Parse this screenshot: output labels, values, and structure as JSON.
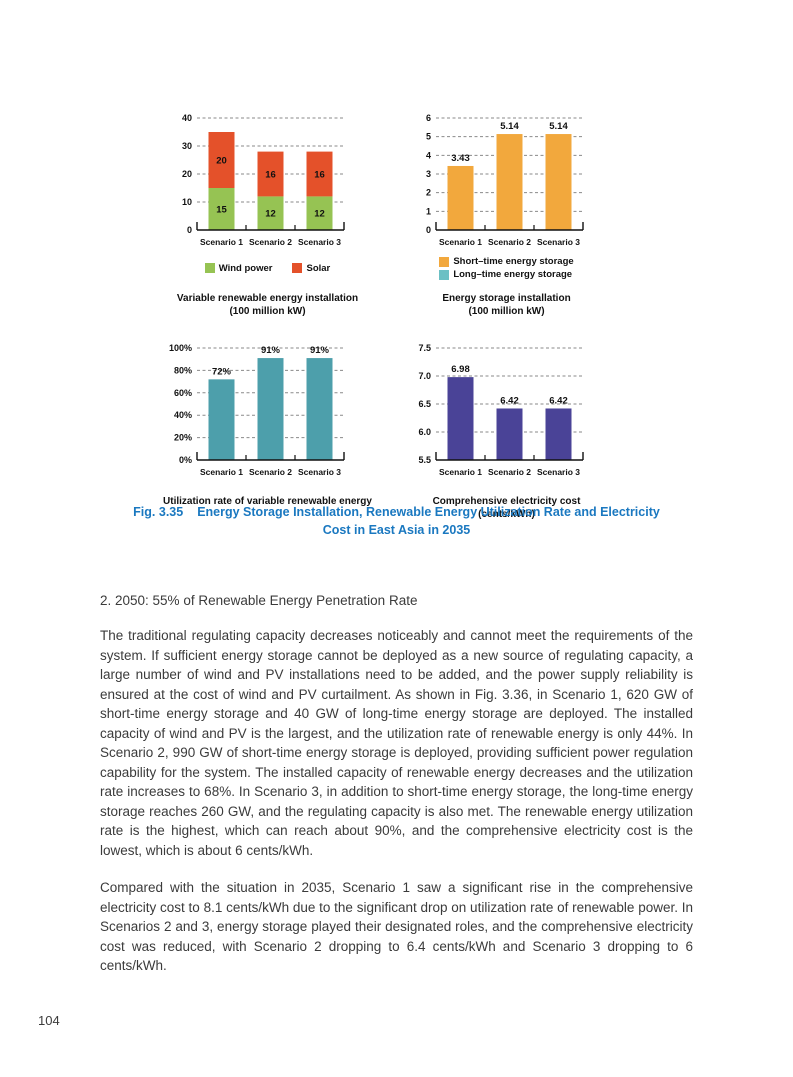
{
  "colors": {
    "caption_blue": "#1a78c0",
    "text": "#3b3b3b",
    "axis": "#111111",
    "gridline": "#8a8a8a"
  },
  "chart_data": [
    {
      "name": "variable-renewable-energy-installation",
      "type": "bar",
      "stacked": true,
      "categories": [
        "Scenario 1",
        "Scenario 2",
        "Scenario 3"
      ],
      "series": [
        {
          "name": "Wind power",
          "color": "#96c353",
          "values": [
            15,
            12,
            12
          ],
          "labels": [
            "15",
            "12",
            "12"
          ]
        },
        {
          "name": "Solar",
          "color": "#e4512a",
          "values": [
            20,
            16,
            16
          ],
          "labels": [
            "20",
            "16",
            "16"
          ]
        }
      ],
      "ylim": [
        0,
        40
      ],
      "yticks": [
        {
          "v": 0,
          "label": "0"
        },
        {
          "v": 10,
          "label": "10"
        },
        {
          "v": 20,
          "label": "20"
        },
        {
          "v": 30,
          "label": "30"
        },
        {
          "v": 40,
          "label": "40"
        }
      ],
      "grid": true,
      "label_position": "inside",
      "legend_layout": "row",
      "legend": [
        {
          "label": "Wind power",
          "color": "#96c353"
        },
        {
          "label": "Solar",
          "color": "#e4512a"
        }
      ],
      "title_lines": [
        "Variable renewable energy installation",
        "(100 million kW)"
      ]
    },
    {
      "name": "energy-storage-installation",
      "type": "bar",
      "stacked": false,
      "categories": [
        "Scenario 1",
        "Scenario 2",
        "Scenario 3"
      ],
      "series": [
        {
          "name": "Short–time energy storage",
          "color": "#f2a83d",
          "values": [
            3.43,
            5.14,
            5.14
          ],
          "labels": [
            "3.43",
            "5.14",
            "5.14"
          ]
        }
      ],
      "ylim": [
        0,
        6
      ],
      "yticks": [
        {
          "v": 0,
          "label": "0"
        },
        {
          "v": 1,
          "label": "1"
        },
        {
          "v": 2,
          "label": "2"
        },
        {
          "v": 3,
          "label": "3"
        },
        {
          "v": 4,
          "label": "4"
        },
        {
          "v": 5,
          "label": "5"
        },
        {
          "v": 6,
          "label": "6"
        }
      ],
      "grid": true,
      "label_position": "above",
      "legend_layout": "column",
      "legend": [
        {
          "label": "Short–time energy storage",
          "color": "#f2a83d"
        },
        {
          "label": "Long–time energy storage",
          "color": "#6cc0c4"
        }
      ],
      "title_lines": [
        "Energy storage installation",
        "(100 million kW)"
      ]
    },
    {
      "name": "utilization-rate-of-variable-renewable-energy",
      "type": "bar",
      "stacked": false,
      "categories": [
        "Scenario 1",
        "Scenario 2",
        "Scenario 3"
      ],
      "series": [
        {
          "name": "Utilization rate",
          "color": "#4d9fab",
          "values": [
            72,
            91,
            91
          ],
          "labels": [
            "72%",
            "91%",
            "91%"
          ]
        }
      ],
      "ylim": [
        0,
        100
      ],
      "yticks": [
        {
          "v": 0,
          "label": "0%"
        },
        {
          "v": 20,
          "label": "20%"
        },
        {
          "v": 40,
          "label": "40%"
        },
        {
          "v": 60,
          "label": "60%"
        },
        {
          "v": 80,
          "label": "80%"
        },
        {
          "v": 100,
          "label": "100%"
        }
      ],
      "grid": true,
      "label_position": "above",
      "legend": [],
      "title_lines": [
        "Utilization rate of variable renewable energy"
      ]
    },
    {
      "name": "comprehensive-electricity-cost",
      "type": "bar",
      "stacked": false,
      "categories": [
        "Scenario 1",
        "Scenario 2",
        "Scenario 3"
      ],
      "series": [
        {
          "name": "Comprehensive electricity cost",
          "color": "#4a4397",
          "values": [
            6.98,
            6.42,
            6.42
          ],
          "labels": [
            "6.98",
            "6.42",
            "6.42"
          ]
        }
      ],
      "ylim": [
        5.5,
        7.5
      ],
      "yticks": [
        {
          "v": 5.5,
          "label": "5.5"
        },
        {
          "v": 6.0,
          "label": "6.0"
        },
        {
          "v": 6.5,
          "label": "6.5"
        },
        {
          "v": 7.0,
          "label": "7.0"
        },
        {
          "v": 7.5,
          "label": "7.5"
        }
      ],
      "grid": true,
      "label_position": "above",
      "legend": [],
      "title_lines": [
        "Comprehensive electricity cost",
        "(cents/kWh)"
      ]
    }
  ],
  "figure": {
    "caption": {
      "label": "Fig. 3.35",
      "line1": "Energy Storage Installation, Renewable Energy Utilization Rate and Electricity",
      "line2": "Cost in East Asia in 2035"
    }
  },
  "section": {
    "heading": "2. 2050: 55% of Renewable Energy Penetration Rate",
    "paragraphs": [
      "The traditional regulating capacity decreases noticeably and cannot meet the requirements of the system. If sufficient energy storage cannot be deployed as a new source of regulating capacity, a large number of wind and PV installations need to be added, and the power supply reliability is ensured at the cost of wind and PV curtailment. As shown in Fig. 3.36, in Scenario 1, 620 GW of short-time energy storage and 40 GW of long-time energy storage are deployed. The installed capacity of wind and PV is the largest, and the utilization rate of renewable energy is only 44%. In Scenario 2, 990 GW of short-time energy storage is deployed, providing sufficient power regulation capability for the system. The installed capacity of renewable energy decreases and the utilization rate increases to 68%. In Scenario 3, in addition to short-time energy storage, the long-time energy storage reaches 260 GW, and the regulating capacity is also met. The renewable energy utilization rate is the highest, which can reach about 90%, and the comprehensive electricity cost is the lowest, which is about 6 cents/kWh.",
      "Compared with the situation in 2035, Scenario 1 saw a significant rise in the comprehensive electricity cost to 8.1 cents/kWh due to the significant drop on utilization rate of renewable power. In Scenarios 2 and 3, energy storage played their designated roles, and the comprehensive electricity cost was reduced, with Scenario 2 dropping to 6.4 cents/kWh and Scenario 3 dropping to 6 cents/kWh."
    ]
  },
  "page": {
    "number": "104"
  }
}
